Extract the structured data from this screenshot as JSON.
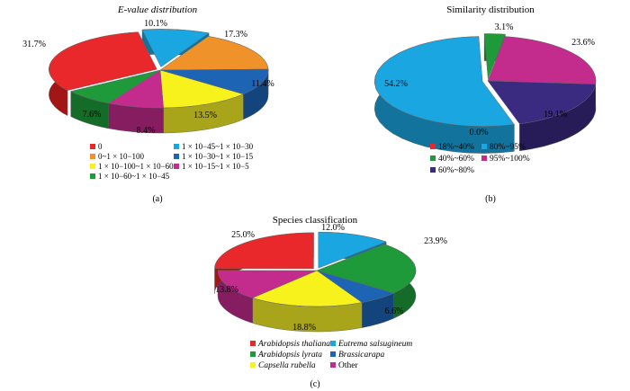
{
  "chart_data": [
    {
      "type": "pie",
      "title": "E-value distribution",
      "panel_label": "(a)",
      "slices": [
        {
          "label": "0",
          "value": 31.7,
          "value_label": "31.7%",
          "color": "#e8282a",
          "side": "#a31616"
        },
        {
          "label": "0~1 × 10−100",
          "value": 0,
          "value_label": "",
          "color": "#f0922a",
          "side": "#b5661a"
        },
        {
          "label": "1 × 10−100~1 × 10−60",
          "value": 13.5,
          "value_label": "13.5%",
          "color": "#f7f21c",
          "side": "#a9a51a"
        },
        {
          "label": "1 × 10−60~1 × 10−45",
          "value": 7.6,
          "value_label": "7.6%",
          "color": "#1f9a3a",
          "side": "#156b28"
        },
        {
          "label": "1 × 10−45~1 × 10−30",
          "value": 10.1,
          "value_label": "10.1%",
          "color": "#1aa6e0",
          "side": "#12739c"
        },
        {
          "label": "1 × 10−30~1 × 10−15",
          "value": 11.4,
          "value_label": "11.4%",
          "color": "#1e64b4",
          "side": "#14447c"
        },
        {
          "label": "1 × 10−15~1 × 10−5",
          "value": 8.4,
          "value_label": "8.4%",
          "color": "#c32c8c",
          "side": "#861d60"
        },
        {
          "label": "",
          "value": 17.3,
          "value_label": "17.3%",
          "color": "#f0922a",
          "side": "#b5661a"
        }
      ]
    },
    {
      "type": "pie",
      "title": "Similarity distribution",
      "panel_label": "(b)",
      "slices": [
        {
          "label": "18%~40%",
          "value": 0.0,
          "value_label": "0.0%",
          "color": "#e8282a",
          "side": "#a31616"
        },
        {
          "label": "40%~60%",
          "value": 3.1,
          "value_label": "3.1%",
          "color": "#1f9a3a",
          "side": "#156b28"
        },
        {
          "label": "60%~80%",
          "value": 19.1,
          "value_label": "19.1%",
          "color": "#3a2a80",
          "side": "#271c58"
        },
        {
          "label": "80%~95%",
          "value": 54.2,
          "value_label": "54.2%",
          "color": "#1aa6e0",
          "side": "#12739c"
        },
        {
          "label": "95%~100%",
          "value": 23.6,
          "value_label": "23.6%",
          "color": "#c32c8c",
          "side": "#861d60"
        }
      ]
    },
    {
      "type": "pie",
      "title": "Species classification",
      "panel_label": "(c)",
      "slices": [
        {
          "label": "Arabidopsis thaliana",
          "value": 25.0,
          "value_label": "25.0%",
          "color": "#e8282a",
          "side": "#a31616",
          "italic": true
        },
        {
          "label": "Arabidopsis lyrata",
          "value": 23.9,
          "value_label": "23.9%",
          "color": "#1f9a3a",
          "side": "#156b28",
          "italic": true
        },
        {
          "label": "Capsella rubella",
          "value": 18.8,
          "value_label": "18.8%",
          "color": "#f7f21c",
          "side": "#a9a51a",
          "italic": true
        },
        {
          "label": "Eutrema salsugineum",
          "value": 12.0,
          "value_label": "12.0%",
          "color": "#1aa6e0",
          "side": "#12739c",
          "italic": true
        },
        {
          "label": "Brassicarapa",
          "value": 6.6,
          "value_label": "6.6%",
          "color": "#1e64b4",
          "side": "#14447c",
          "italic": true
        },
        {
          "label": "Other",
          "value": 13.8,
          "value_label": "13.8%",
          "color": "#c32c8c",
          "side": "#861d60",
          "italic": false
        }
      ]
    }
  ]
}
